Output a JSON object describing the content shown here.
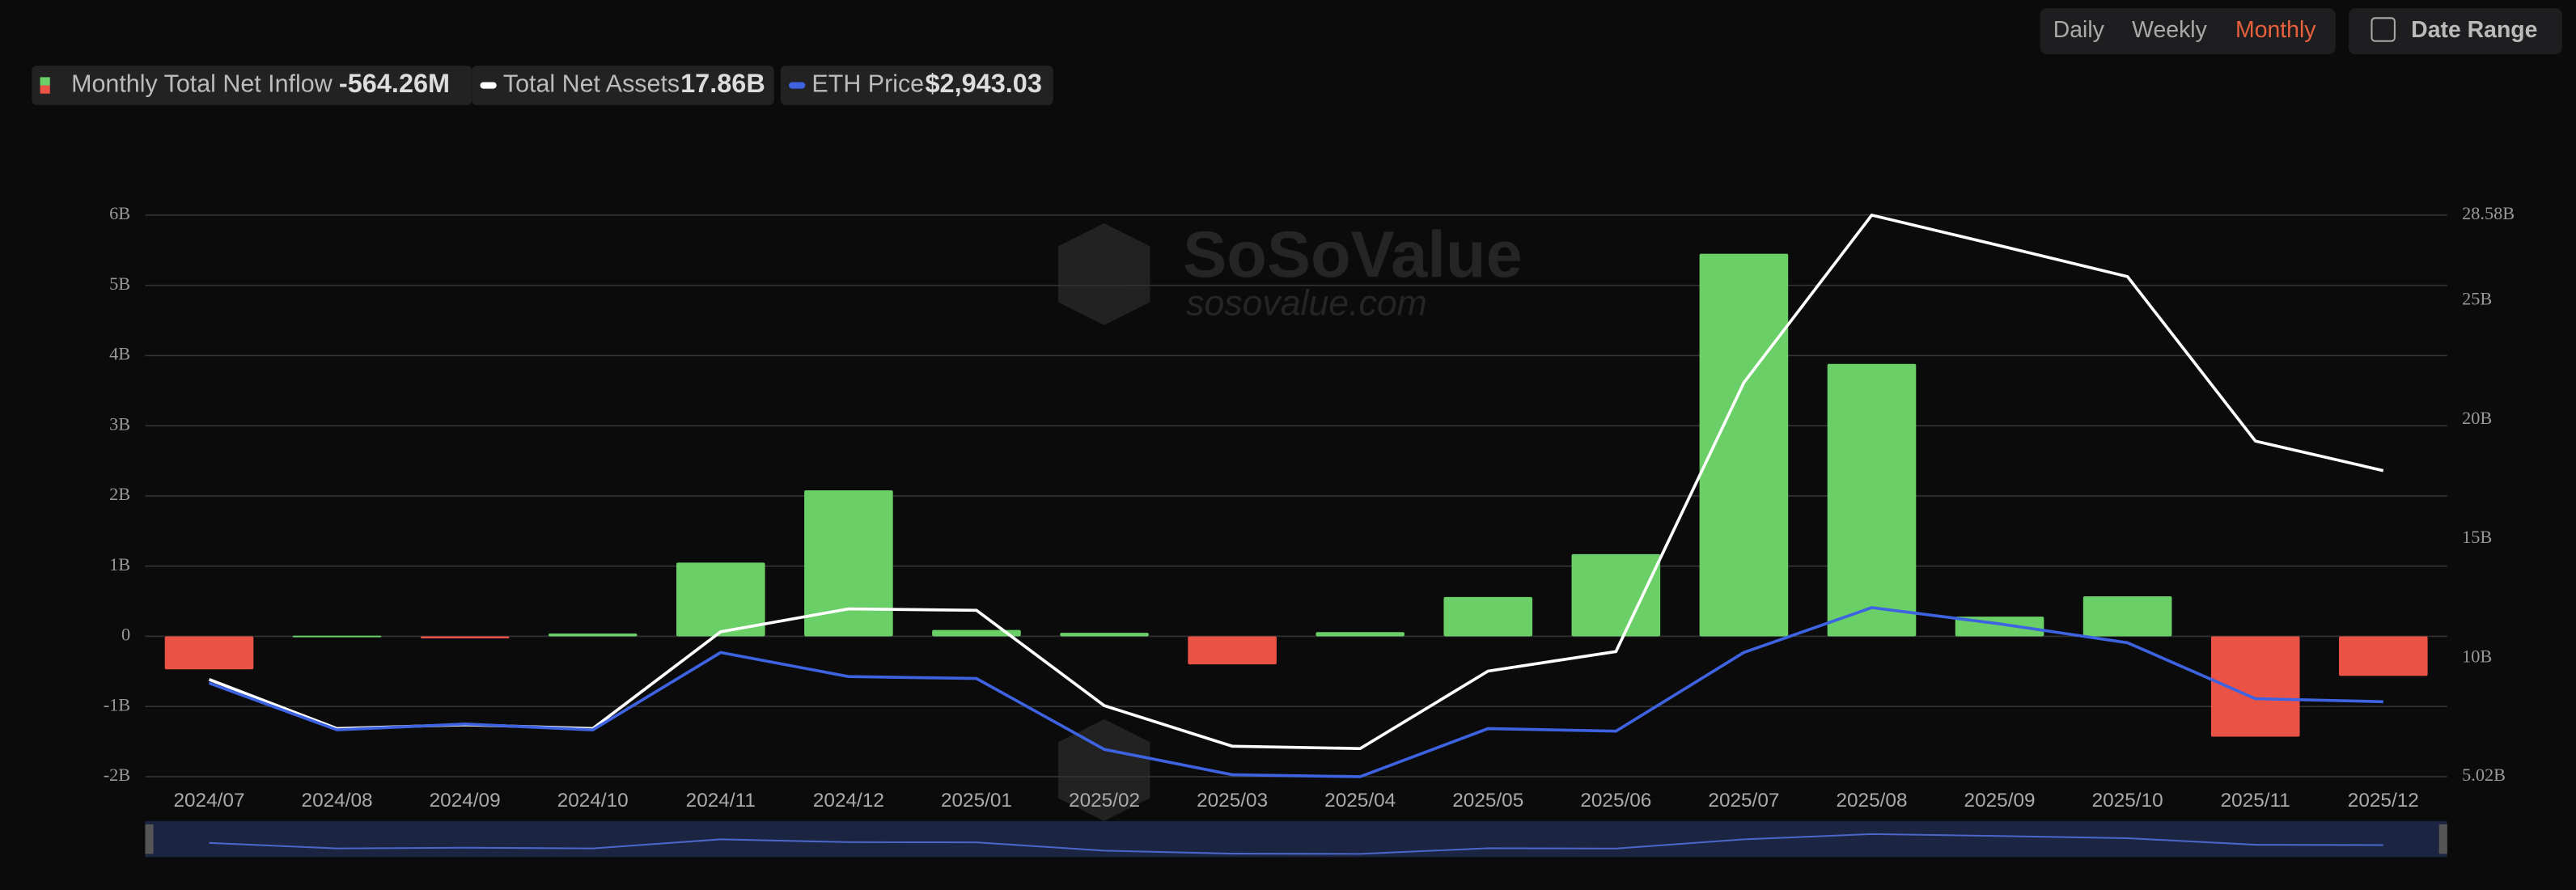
{
  "controls": {
    "periods": [
      "Daily",
      "Weekly",
      "Monthly"
    ],
    "active_period": "Monthly",
    "date_range": "Date Range"
  },
  "watermark": {
    "brand": "SoSoValue",
    "url": "sosovalue.com"
  },
  "chart_data": {
    "type": "bar",
    "categories": [
      "2024/07",
      "2024/08",
      "2024/09",
      "2024/10",
      "2024/11",
      "2024/12",
      "2025/01",
      "2025/02",
      "2025/03",
      "2025/04",
      "2025/05",
      "2025/06",
      "2025/07",
      "2025/08",
      "2025/09",
      "2025/10",
      "2025/11",
      "2025/12"
    ],
    "series": [
      {
        "name": "Monthly Total Net Inflow",
        "type": "bar",
        "color": "#6bcf68",
        "negative_color": "#eb5246",
        "legend_value": "-564.26M",
        "values": [
          -0.47,
          0.01,
          -0.03,
          0.04,
          1.05,
          2.08,
          0.09,
          0.05,
          -0.4,
          0.06,
          0.56,
          1.17,
          5.45,
          3.88,
          0.28,
          0.57,
          -1.43,
          -0.56426
        ]
      },
      {
        "name": "Total Net Assets",
        "type": "line",
        "axis": "y2",
        "color": "#ffffff",
        "legend_value": "17.86B",
        "values": [
          9.1,
          7.04,
          7.2,
          7.04,
          11.1,
          12.06,
          12.0,
          8.0,
          6.3,
          6.2,
          9.45,
          10.27,
          21.55,
          28.58,
          27.3,
          26.0,
          19.1,
          17.86
        ]
      },
      {
        "name": "ETH Price",
        "type": "line",
        "axis": "y3",
        "color": "#3d63e0",
        "legend_value": "$2,943.03",
        "values": [
          3230,
          2510,
          2600,
          2510,
          3700,
          3330,
          3300,
          2210,
          1820,
          1790,
          2530,
          2490,
          3700,
          4390,
          4140,
          3850,
          2990,
          2943.03
        ]
      }
    ],
    "ylim": [
      -2,
      6
    ],
    "yticks": [
      {
        "value": -2,
        "label": "-2B"
      },
      {
        "value": -1,
        "label": "-1B"
      },
      0,
      {
        "value": 1,
        "label": "1B"
      },
      {
        "value": 2,
        "label": "2B"
      },
      {
        "value": 3,
        "label": "3B"
      },
      {
        "value": 4,
        "label": "4B"
      },
      {
        "value": 5,
        "label": "5B"
      },
      {
        "value": 6,
        "label": "6B"
      }
    ],
    "y2lim": [
      5.02,
      28.58
    ],
    "y2ticks": [
      {
        "value": 5.02,
        "label": "5.02B"
      },
      {
        "value": 10,
        "label": "10B"
      },
      {
        "value": 15,
        "label": "15B"
      },
      {
        "value": 20,
        "label": "20B"
      },
      {
        "value": 25,
        "label": "25B"
      },
      {
        "value": 28.58,
        "label": "28.58B"
      }
    ],
    "y3lim": [
      1790,
      10426
    ],
    "grid": true
  }
}
